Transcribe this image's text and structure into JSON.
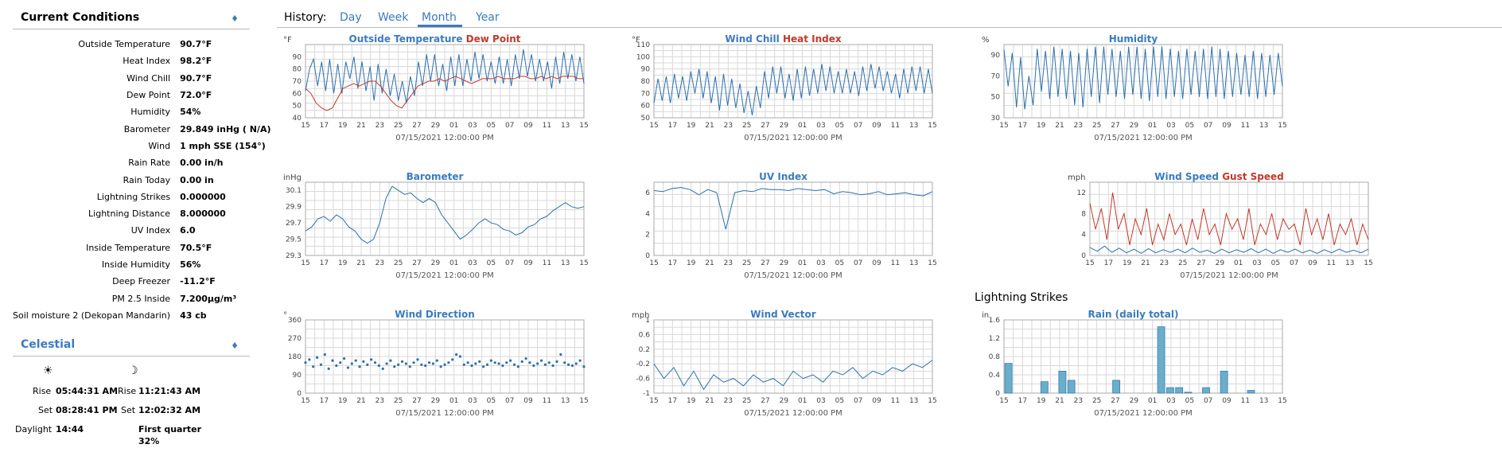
{
  "current": {
    "title": "Current Conditions",
    "rows": [
      {
        "label": "Outside Temperature",
        "value": "90.7°F"
      },
      {
        "label": "Heat Index",
        "value": "98.2°F"
      },
      {
        "label": "Wind Chill",
        "value": "90.7°F"
      },
      {
        "label": "Dew Point",
        "value": "72.0°F"
      },
      {
        "label": "Humidity",
        "value": "54%"
      },
      {
        "label": "Barometer",
        "value": "29.849 inHg ( N/A)"
      },
      {
        "label": "Wind",
        "value": "1 mph SSE (154°)"
      },
      {
        "label": "Rain Rate",
        "value": "0.00 in/h"
      },
      {
        "label": "Rain Today",
        "value": "0.00 in"
      },
      {
        "label": "Lightning Strikes",
        "value": "0.000000"
      },
      {
        "label": "Lightning Distance",
        "value": "8.000000"
      },
      {
        "label": "UV Index",
        "value": "6.0"
      },
      {
        "label": "Inside Temperature",
        "value": "70.5°F"
      },
      {
        "label": "Inside Humidity",
        "value": "56%"
      },
      {
        "label": "Deep Freezer",
        "value": "-11.2°F"
      },
      {
        "label": "PM 2.5 Inside",
        "value": "7.200μg/m³"
      },
      {
        "label": "Soil moisture 2 (Dekopan Mandarin)",
        "value": "43 cb"
      }
    ]
  },
  "celestial": {
    "title": "Celestial",
    "sun_icon": "☀",
    "moon_icon": "☽",
    "rise_label": "Rise",
    "set_label": "Set",
    "daylight_label": "Daylight",
    "sun_rise": "05:44:31 AM",
    "sun_set": "08:28:41 PM",
    "daylight": "14:44",
    "moon_rise": "11:21:43 AM",
    "moon_set": "12:02:32 AM",
    "moon_phase": "First quarter",
    "moon_fullness": "32%"
  },
  "history": {
    "label": "History:",
    "tabs": [
      "Day",
      "Week",
      "Month",
      "Year"
    ],
    "active": "Month"
  },
  "lightning_title": "Lightning Strikes",
  "colors": {
    "accent": "#3a7bbf",
    "series_blue": "#2c6fad",
    "series_red": "#c0392b",
    "bar_fill": "#6aaec8"
  },
  "chart_data": [
    {
      "type": "line",
      "id": "outside-temp",
      "title": "Outside Temperature",
      "title_red": "Dew Point",
      "ylabel": "°F",
      "xlabel": "07/15/2021 12:00:00 PM",
      "ylim": [
        40,
        100
      ],
      "yticks": [
        40,
        50,
        60,
        70,
        80,
        90
      ],
      "xticks": [
        "15",
        "17",
        "19",
        "21",
        "23",
        "25",
        "27",
        "29",
        "01",
        "03",
        "05",
        "07",
        "09",
        "11",
        "13",
        "15"
      ],
      "grid": true,
      "series": [
        {
          "name": "Outside Temperature",
          "color": "#2c6fad",
          "values": [
            62,
            80,
            88,
            66,
            86,
            62,
            88,
            60,
            84,
            60,
            86,
            72,
            90,
            64,
            86,
            62,
            82,
            54,
            84,
            60,
            80,
            58,
            76,
            54,
            70,
            52,
            74,
            58,
            86,
            66,
            92,
            70,
            92,
            66,
            84,
            62,
            90,
            66,
            92,
            66,
            88,
            70,
            94,
            72,
            92,
            70,
            86,
            68,
            90,
            68,
            88,
            66,
            92,
            72,
            96,
            74,
            92,
            70,
            88,
            70,
            86,
            64,
            90,
            68,
            94,
            72,
            92,
            70,
            90,
            68
          ]
        },
        {
          "name": "Dew Point",
          "color": "#c0392b",
          "values": [
            64,
            60,
            52,
            48,
            46,
            48,
            56,
            64,
            66,
            68,
            66,
            68,
            70,
            70,
            66,
            60,
            54,
            50,
            48,
            54,
            60,
            66,
            68,
            70,
            70,
            72,
            70,
            72,
            74,
            72,
            70,
            68,
            70,
            72,
            72,
            72,
            74,
            72,
            72,
            72,
            74,
            74,
            72,
            72,
            74,
            72,
            74,
            72,
            74,
            74,
            74,
            72,
            72
          ]
        }
      ]
    },
    {
      "type": "line",
      "id": "wind-chill",
      "title": "Wind Chill",
      "title_red": "Heat Index",
      "ylabel": "°F",
      "xlabel": "07/15/2021 12:00:00 PM",
      "ylim": [
        50,
        110
      ],
      "yticks": [
        50,
        60,
        70,
        80,
        90,
        100,
        110
      ],
      "xticks": [
        "15",
        "17",
        "19",
        "21",
        "23",
        "25",
        "27",
        "29",
        "01",
        "03",
        "05",
        "07",
        "09",
        "11",
        "13",
        "15"
      ],
      "grid": true,
      "series": [
        {
          "name": "Wind Chill",
          "color": "#2c6fad",
          "values": [
            62,
            82,
            64,
            84,
            62,
            86,
            66,
            84,
            64,
            88,
            70,
            90,
            66,
            88,
            62,
            84,
            56,
            86,
            60,
            82,
            58,
            78,
            54,
            72,
            52,
            76,
            58,
            88,
            66,
            92,
            70,
            92,
            66,
            86,
            64,
            90,
            66,
            92,
            68,
            90,
            70,
            94,
            72,
            92,
            70,
            88,
            70,
            90,
            70,
            88,
            68,
            92,
            72,
            94,
            74,
            92,
            72,
            88,
            70,
            86,
            66,
            90,
            70,
            92,
            72,
            92,
            70,
            90,
            70
          ]
        },
        {
          "name": "Heat Index",
          "color": "#c0392b",
          "values": [
            null,
            null,
            null,
            null,
            null,
            null,
            null,
            null,
            null,
            null,
            null,
            null,
            null,
            null,
            90,
            null,
            96,
            null,
            null,
            null,
            null,
            null,
            null,
            null,
            null,
            null,
            null,
            null,
            null,
            96,
            null,
            100,
            null,
            106,
            null,
            100,
            null,
            null,
            null,
            null,
            null,
            null,
            null,
            null,
            null,
            98,
            null,
            102,
            null,
            96,
            null,
            104,
            null,
            98,
            null,
            null,
            null,
            null,
            null,
            null,
            null,
            null,
            null,
            null,
            null,
            null,
            null,
            null,
            null
          ]
        }
      ]
    },
    {
      "type": "line",
      "id": "humidity",
      "title": "Humidity",
      "ylabel": "%",
      "xlabel": "07/15/2021 12:00:00 PM",
      "ylim": [
        30,
        100
      ],
      "yticks": [
        30,
        50,
        70,
        90
      ],
      "xticks": [
        "15",
        "17",
        "19",
        "21",
        "23",
        "25",
        "27",
        "29",
        "01",
        "03",
        "05",
        "07",
        "09",
        "11",
        "13",
        "15"
      ],
      "grid": true,
      "series": [
        {
          "name": "Humidity",
          "color": "#2c6fad",
          "values": [
            95,
            60,
            92,
            40,
            88,
            38,
            70,
            42,
            96,
            55,
            94,
            48,
            98,
            50,
            96,
            48,
            94,
            42,
            92,
            40,
            96,
            50,
            98,
            44,
            98,
            52,
            96,
            50,
            94,
            48,
            98,
            52,
            98,
            48,
            96,
            46,
            98,
            50,
            98,
            48,
            96,
            50,
            94,
            48,
            96,
            52,
            94,
            50,
            96,
            48,
            98,
            50,
            96,
            48,
            94,
            50,
            92,
            52,
            90,
            50,
            94,
            48,
            92,
            50,
            90,
            52,
            92,
            60
          ]
        }
      ]
    },
    {
      "type": "line",
      "id": "barometer",
      "title": "Barometer",
      "ylabel": "inHg",
      "xlabel": "07/15/2021 12:00:00 PM",
      "ylim": [
        29.3,
        30.2
      ],
      "yticks": [
        29.3,
        29.5,
        29.7,
        29.9,
        30.1
      ],
      "xticks": [
        "15",
        "17",
        "19",
        "21",
        "23",
        "25",
        "27",
        "29",
        "01",
        "03",
        "05",
        "07",
        "09",
        "11",
        "13",
        "15"
      ],
      "grid": true,
      "series": [
        {
          "name": "Barometer",
          "color": "#2c6fad",
          "values": [
            29.6,
            29.65,
            29.75,
            29.78,
            29.72,
            29.8,
            29.75,
            29.65,
            29.6,
            29.5,
            29.45,
            29.5,
            29.7,
            30.0,
            30.15,
            30.1,
            30.05,
            30.07,
            30.0,
            29.95,
            30.0,
            29.95,
            29.8,
            29.7,
            29.6,
            29.5,
            29.55,
            29.62,
            29.7,
            29.75,
            29.7,
            29.68,
            29.62,
            29.6,
            29.55,
            29.58,
            29.65,
            29.68,
            29.75,
            29.78,
            29.85,
            29.9,
            29.95,
            29.9,
            29.88,
            29.9
          ]
        }
      ]
    },
    {
      "type": "line",
      "id": "uv-index",
      "title": "UV Index",
      "ylabel": "",
      "xlabel": "07/15/2021 12:00:00 PM",
      "ylim": [
        0,
        7
      ],
      "yticks": [
        0,
        2,
        4,
        6
      ],
      "xticks": [
        "15",
        "17",
        "19",
        "21",
        "23",
        "25",
        "27",
        "29",
        "01",
        "03",
        "05",
        "07",
        "09",
        "11",
        "13",
        "15"
      ],
      "grid": true,
      "series": [
        {
          "name": "UV Index",
          "color": "#2c6fad",
          "values": [
            6.2,
            6.1,
            6.4,
            6.5,
            6.3,
            5.8,
            6.3,
            6.0,
            2.5,
            6.0,
            6.2,
            6.1,
            6.4,
            6.3,
            6.3,
            6.2,
            6.4,
            6.3,
            6.2,
            6.3,
            5.9,
            6.1,
            6.0,
            5.8,
            5.9,
            6.1,
            5.8,
            5.9,
            6.0,
            5.8,
            5.7,
            6.1
          ]
        }
      ]
    },
    {
      "type": "line",
      "id": "wind-speed",
      "title": "Wind Speed",
      "title_red": "Gust Speed",
      "ylabel": "mph",
      "xlabel": "07/15/2021 12:00:00 PM",
      "ylim": [
        0,
        14
      ],
      "yticks": [
        0,
        4,
        8,
        12
      ],
      "xticks": [
        "15",
        "17",
        "19",
        "21",
        "23",
        "25",
        "27",
        "29",
        "01",
        "03",
        "05",
        "07",
        "09",
        "11",
        "13",
        "15"
      ],
      "grid": true,
      "series": [
        {
          "name": "Wind Speed",
          "color": "#2c6fad",
          "values": [
            1.5,
            0.8,
            1.8,
            0.6,
            1.4,
            0.5,
            1.2,
            0.4,
            1.3,
            0.5,
            1.1,
            0.6,
            1.2,
            0.5,
            1.4,
            0.6,
            1.0,
            0.4,
            1.2,
            0.5,
            1.1,
            0.6,
            1.3,
            0.5,
            1.2,
            0.4,
            1.1,
            0.6,
            1.2,
            0.5,
            1.0,
            0.4,
            1.1,
            0.5,
            1.2,
            0.6,
            1.0,
            0.5,
            1.2
          ]
        },
        {
          "name": "Gust Speed",
          "color": "#c0392b",
          "values": [
            10,
            5,
            9,
            3,
            12,
            5,
            8,
            2,
            7,
            4,
            9,
            2,
            6,
            3,
            8,
            4,
            6,
            2,
            7,
            3,
            9,
            4,
            6,
            2,
            8,
            5,
            7,
            3,
            9,
            2,
            6,
            4,
            8,
            3,
            7,
            5,
            6,
            2,
            9,
            4,
            7,
            3,
            8,
            2,
            6,
            4,
            7,
            2,
            6,
            3
          ]
        }
      ]
    },
    {
      "type": "scatter",
      "id": "wind-direction",
      "title": "Wind Direction",
      "ylabel": "°",
      "xlabel": "07/15/2021 12:00:00 PM",
      "ylim": [
        0,
        360
      ],
      "yticks": [
        0,
        90,
        180,
        270,
        360
      ],
      "xticks": [
        "15",
        "17",
        "19",
        "21",
        "23",
        "25",
        "27",
        "29",
        "01",
        "03",
        "05",
        "07",
        "09",
        "11",
        "13",
        "15"
      ],
      "grid": true,
      "series": [
        {
          "name": "Wind Direction",
          "color": "#2c6fad",
          "values": [
            150,
            165,
            130,
            175,
            140,
            190,
            120,
            160,
            135,
            150,
            170,
            125,
            145,
            160,
            130,
            155,
            140,
            165,
            150,
            135,
            120,
            145,
            160,
            130,
            140,
            155,
            145,
            130,
            150,
            165,
            140,
            135,
            150,
            145,
            160,
            130,
            140,
            150,
            165,
            190,
            180,
            140,
            150,
            135,
            145,
            155,
            130,
            140,
            160,
            150,
            145,
            135,
            150,
            160,
            140,
            130,
            155,
            170,
            150,
            135,
            145,
            160,
            140,
            150,
            135,
            155,
            190,
            150,
            140,
            135,
            145,
            160,
            130
          ]
        }
      ]
    },
    {
      "type": "line",
      "id": "wind-vector",
      "title": "Wind Vector",
      "ylabel": "mph",
      "xlabel": "07/15/2021 12:00:00 PM",
      "ylim": [
        -1.0,
        1.0
      ],
      "yticks": [
        -1.0,
        -0.6,
        -0.2,
        0.2,
        0.6,
        1.0
      ],
      "xticks": [
        "15",
        "17",
        "19",
        "21",
        "23",
        "25",
        "27",
        "29",
        "01",
        "03",
        "05",
        "07",
        "09",
        "11",
        "13",
        "15"
      ],
      "grid": true,
      "series": [
        {
          "name": "Wind Vector",
          "color": "#2c6fad",
          "values": [
            -0.2,
            -0.6,
            -0.3,
            -0.8,
            -0.4,
            -0.9,
            -0.5,
            -0.7,
            -0.6,
            -0.8,
            -0.5,
            -0.7,
            -0.6,
            -0.8,
            -0.4,
            -0.6,
            -0.5,
            -0.7,
            -0.4,
            -0.5,
            -0.3,
            -0.6,
            -0.4,
            -0.5,
            -0.3,
            -0.4,
            -0.2,
            -0.3,
            -0.1
          ]
        }
      ]
    },
    {
      "type": "bar",
      "id": "rain-daily",
      "title": "Rain (daily total)",
      "ylabel": "in",
      "xlabel": "07/15/2021 12:00:00 PM",
      "ylim": [
        0,
        1.6
      ],
      "yticks": [
        0,
        0.4,
        0.8,
        1.2,
        1.6
      ],
      "xticks": [
        "15",
        "17",
        "19",
        "21",
        "23",
        "25",
        "27",
        "29",
        "01",
        "03",
        "05",
        "07",
        "09",
        "11",
        "13",
        "15"
      ],
      "grid": true,
      "values": [
        0.65,
        0,
        0,
        0,
        0.25,
        0,
        0.48,
        0.28,
        0,
        0,
        0,
        0,
        0.28,
        0,
        0,
        0,
        0,
        1.45,
        0.12,
        0.12,
        0.02,
        0,
        0.12,
        0,
        0.48,
        0,
        0,
        0.06,
        0,
        0,
        0
      ]
    }
  ]
}
